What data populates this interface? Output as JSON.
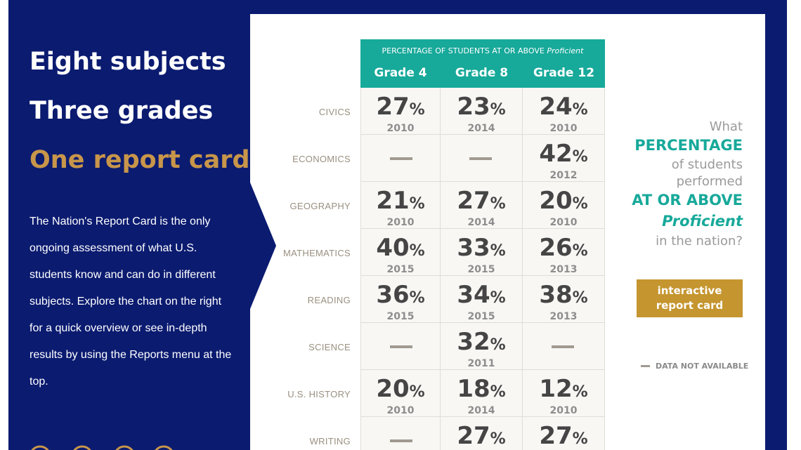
{
  "left": {
    "headings": [
      "Eight subjects",
      "Three grades",
      "One report card"
    ],
    "paragraph": "The Nation's Report Card is the only ongoing assessment of what U.S. students know and can do in different subjects. Explore the chart on the right for a quick overview or see in-depth results by using the Reports menu at the top."
  },
  "table": {
    "caption": "PERCENTAGE OF STUDENTS AT OR ABOVE",
    "caption_italic": "Proficient",
    "columns": [
      "Grade 4",
      "Grade 8",
      "Grade 12"
    ],
    "unit": "%",
    "rows": [
      {
        "label": "CIVICS",
        "cells": [
          {
            "value": 27,
            "year": 2010
          },
          {
            "value": 23,
            "year": 2014
          },
          {
            "value": 24,
            "year": 2010
          }
        ]
      },
      {
        "label": "ECONOMICS",
        "cells": [
          null,
          null,
          {
            "value": 42,
            "year": 2012
          }
        ]
      },
      {
        "label": "GEOGRAPHY",
        "cells": [
          {
            "value": 21,
            "year": 2010
          },
          {
            "value": 27,
            "year": 2014
          },
          {
            "value": 20,
            "year": 2010
          }
        ]
      },
      {
        "label": "MATHEMATICS",
        "cells": [
          {
            "value": 40,
            "year": 2015
          },
          {
            "value": 33,
            "year": 2015
          },
          {
            "value": 26,
            "year": 2013
          }
        ]
      },
      {
        "label": "READING",
        "cells": [
          {
            "value": 36,
            "year": 2015
          },
          {
            "value": 34,
            "year": 2015
          },
          {
            "value": 38,
            "year": 2013
          }
        ]
      },
      {
        "label": "SCIENCE",
        "cells": [
          null,
          {
            "value": 32,
            "year": 2011
          },
          null
        ]
      },
      {
        "label": "U.S. HISTORY",
        "cells": [
          {
            "value": 20,
            "year": 2010
          },
          {
            "value": 18,
            "year": 2014
          },
          {
            "value": 12,
            "year": 2010
          }
        ]
      },
      {
        "label": "WRITING",
        "cells": [
          null,
          {
            "value": 27
          },
          {
            "value": 27
          }
        ]
      }
    ]
  },
  "side": {
    "what": "What",
    "percentage": "PERCENTAGE",
    "of_students": "of students",
    "performed": "performed",
    "at_or_above": "AT OR ABOVE",
    "proficient": "Proficient",
    "nation": "in the nation?",
    "button": "interactive report card",
    "legend": "DATA NOT AVAILABLE"
  }
}
